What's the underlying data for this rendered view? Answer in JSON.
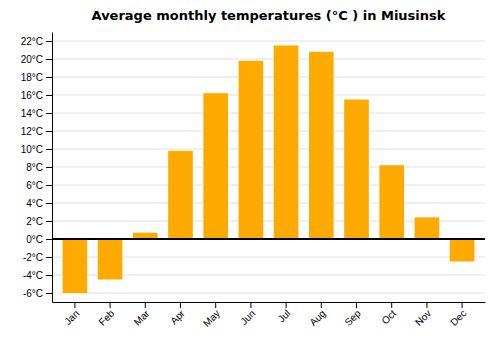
{
  "chart_data": {
    "type": "bar",
    "title": "Average monthly temperatures (°C ) in Miusinsk",
    "categories": [
      "Jan",
      "Feb",
      "Mar",
      "Apr",
      "May",
      "Jun",
      "Jul",
      "Aug",
      "Sep",
      "Oct",
      "Nov",
      "Dec"
    ],
    "values": [
      -6,
      -4.5,
      0.7,
      9.8,
      16.2,
      19.8,
      21.5,
      20.8,
      15.5,
      8.2,
      2.4,
      -2.5
    ],
    "color": "#FFAA00",
    "ylim": [
      -7,
      23
    ],
    "yticks": [
      {
        "value": -6,
        "label": "-6°C"
      },
      {
        "value": -4,
        "label": "-4°C"
      },
      {
        "value": -2,
        "label": "-2°C"
      },
      {
        "value": 0,
        "label": "0°C"
      },
      {
        "value": 2,
        "label": "2°C"
      },
      {
        "value": 4,
        "label": "4°C"
      },
      {
        "value": 6,
        "label": "6°C"
      },
      {
        "value": 8,
        "label": "8°C"
      },
      {
        "value": 10,
        "label": "10°C"
      },
      {
        "value": 12,
        "label": "12°C"
      },
      {
        "value": 14,
        "label": "14°C"
      },
      {
        "value": 16,
        "label": "16°C"
      },
      {
        "value": 18,
        "label": "18°C"
      },
      {
        "value": 20,
        "label": "20°C"
      },
      {
        "value": 22,
        "label": "22°C"
      }
    ],
    "grid": true
  }
}
